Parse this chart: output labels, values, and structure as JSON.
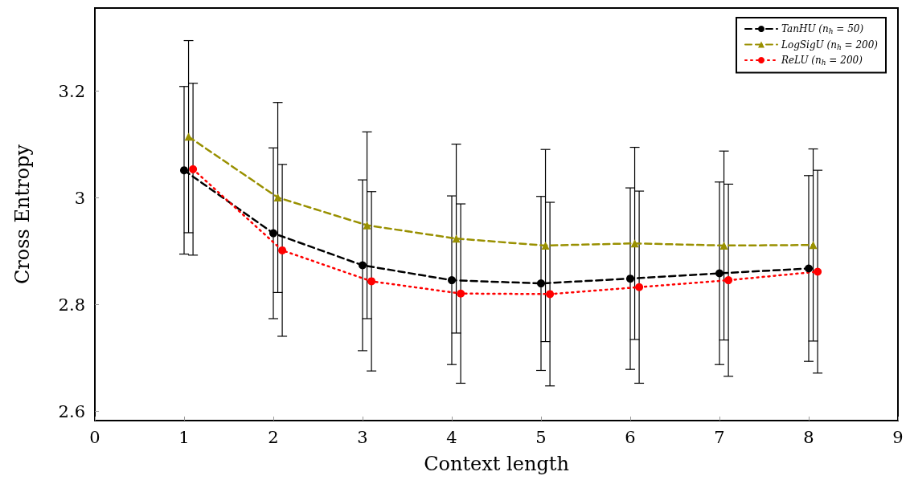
{
  "chart_data": {
    "type": "line",
    "xlabel": "Context length",
    "ylabel": "Cross Entropy",
    "xlim": [
      0,
      9
    ],
    "xticks": [
      0,
      1,
      2,
      3,
      4,
      5,
      6,
      7,
      8,
      9
    ],
    "ylim": [
      2.583,
      3.356
    ],
    "yticks": [
      2.6,
      2.8,
      3,
      3.2
    ],
    "grid": false,
    "legend": "top right",
    "series": [
      {
        "name": "TanHU (n$_{h}$ = 50)",
        "color": "#000000",
        "marker": "circle",
        "line_style": "dashed",
        "x": [
          1,
          2,
          3,
          4,
          5,
          6,
          7,
          8
        ],
        "values": [
          3.052,
          2.934,
          2.874,
          2.846,
          2.84,
          2.849,
          2.859,
          2.868
        ],
        "errors": [
          0.157,
          0.16,
          0.16,
          0.158,
          0.163,
          0.17,
          0.171,
          0.174
        ]
      },
      {
        "name": "LogSigU (n$_{h}$ = 200)",
        "color": "#999000",
        "marker": "triangle",
        "line_style": "dashed",
        "x": [
          1.05,
          2.05,
          3.05,
          4.05,
          5.05,
          6.05,
          7.05,
          8.05
        ],
        "values": [
          3.115,
          3.001,
          2.949,
          2.924,
          2.911,
          2.915,
          2.911,
          2.912
        ],
        "errors": [
          0.18,
          0.178,
          0.175,
          0.177,
          0.18,
          0.18,
          0.177,
          0.18
        ]
      },
      {
        "name": "ReLU (n$_{h}$ = 200)",
        "color": "#ff0000",
        "marker": "circle",
        "line_style": "dotted",
        "x": [
          1.1,
          2.1,
          3.1,
          4.1,
          5.1,
          6.1,
          7.1,
          8.1
        ],
        "values": [
          3.054,
          2.902,
          2.844,
          2.821,
          2.82,
          2.833,
          2.846,
          2.862
        ],
        "errors": [
          0.161,
          0.161,
          0.168,
          0.168,
          0.172,
          0.18,
          0.18,
          0.19
        ]
      }
    ]
  }
}
